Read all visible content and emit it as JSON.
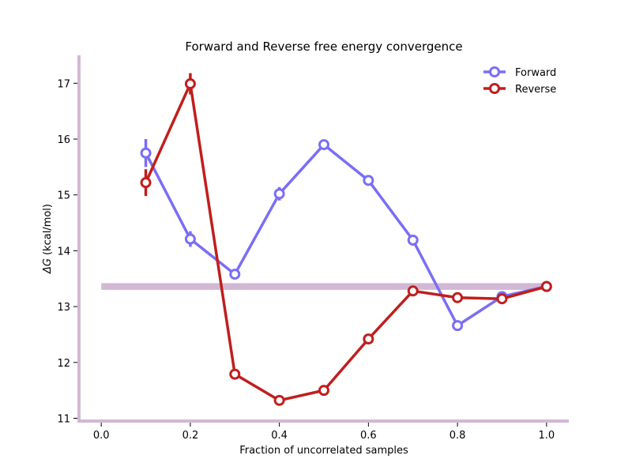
{
  "chart_data": {
    "type": "line",
    "title": "Forward and Reverse free energy convergence",
    "xlabel": "Fraction of uncorrelated samples",
    "ylabel_symbol": "ΔG",
    "ylabel_unit": "(kcal/mol)",
    "xlim": [
      -0.05,
      1.05
    ],
    "ylim": [
      10.95,
      17.5
    ],
    "xticks": [
      0.0,
      0.2,
      0.4,
      0.6,
      0.8,
      1.0
    ],
    "xtick_labels": [
      "0.0",
      "0.2",
      "0.4",
      "0.6",
      "0.8",
      "1.0"
    ],
    "yticks": [
      11,
      12,
      13,
      14,
      15,
      16,
      17
    ],
    "ytick_labels": [
      "11",
      "12",
      "13",
      "14",
      "15",
      "16",
      "17"
    ],
    "grid": false,
    "legend_position": "top-right",
    "reference_band": {
      "x": [
        0.0,
        1.0
      ],
      "y_low": 13.3,
      "y_high": 13.42,
      "color": "#d2b8d4"
    },
    "spine_color": "#d2b8d4",
    "series": [
      {
        "name": "Forward",
        "color": "#7a6ef5",
        "x": [
          0.1,
          0.2,
          0.3,
          0.4,
          0.5,
          0.6,
          0.7,
          0.8,
          0.9,
          1.0
        ],
        "y": [
          15.75,
          14.21,
          13.58,
          15.02,
          15.9,
          15.26,
          14.19,
          12.66,
          13.18,
          13.36
        ],
        "err": [
          0.25,
          0.14,
          0.08,
          0.12,
          0.09,
          0.09,
          0.05,
          0.05,
          0.05,
          0.05
        ]
      },
      {
        "name": "Reverse",
        "color": "#c01e1e",
        "x": [
          0.1,
          0.2,
          0.3,
          0.4,
          0.5,
          0.6,
          0.7,
          0.8,
          0.9,
          1.0
        ],
        "y": [
          15.22,
          16.99,
          11.79,
          11.32,
          11.5,
          12.42,
          13.28,
          13.16,
          13.14,
          13.36
        ],
        "err": [
          0.24,
          0.19,
          0.06,
          0.06,
          0.06,
          0.06,
          0.06,
          0.06,
          0.06,
          0.05
        ]
      }
    ]
  }
}
